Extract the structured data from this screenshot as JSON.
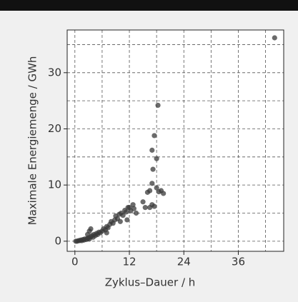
{
  "chart_data": {
    "type": "scatter",
    "xlabel": "Zyklus–Dauer / h",
    "ylabel": "Maximale Energiemenge / GWh",
    "x": [
      0.2,
      0.5,
      0.8,
      1,
      1.3,
      1.5,
      1.8,
      2,
      2.2,
      2.5,
      2.8,
      3,
      3.2,
      3.5,
      3.8,
      4,
      4.2,
      4.5,
      4.8,
      5,
      5.3,
      5.6,
      6,
      6.3,
      6.7,
      7,
      7.3,
      7.7,
      8,
      8.4,
      8.8,
      9,
      9.4,
      9.8,
      10.2,
      10.6,
      11,
      11.3,
      11.7,
      12,
      12.3,
      12.8,
      13,
      13.5,
      11.5,
      3.5,
      3.2,
      2.8,
      15,
      15.5,
      16,
      16.5,
      17,
      17.2,
      17,
      17.5,
      18,
      18,
      18.3,
      18.5,
      19,
      19.5,
      17.5,
      17,
      16.5,
      10,
      7,
      44
    ],
    "series": [
      {
        "color": "#3a3a3a",
        "values": [
          0,
          0,
          0.1,
          0.1,
          0.2,
          0.1,
          0.3,
          0.2,
          0.4,
          0.3,
          0.5,
          0.6,
          0.4,
          0.8,
          1,
          0.7,
          1.2,
          1,
          1.4,
          1.2,
          1.6,
          1.5,
          1.8,
          2.2,
          2,
          2.6,
          2.4,
          3,
          3.5,
          3.2,
          3.8,
          4.5,
          4,
          4.8,
          5,
          4.6,
          5.5,
          5.2,
          6,
          6,
          5.4,
          6.5,
          5.8,
          5,
          3.8,
          2.2,
          1.8,
          1.2,
          7,
          6,
          8.7,
          9,
          10.3,
          12.8,
          16.2,
          18.8,
          14.7,
          9.5,
          24.2,
          8.8,
          9,
          8.5,
          6.2,
          6.5,
          6,
          3.5,
          1.5,
          36.2
        ]
      }
    ],
    "xlim": [
      -1.7,
      46
    ],
    "ylim": [
      -1.8,
      37.6
    ],
    "xticks": [
      0,
      12,
      24,
      36
    ],
    "yticks": [
      0,
      10,
      20,
      30
    ],
    "grid": true,
    "minor_grid": true
  }
}
